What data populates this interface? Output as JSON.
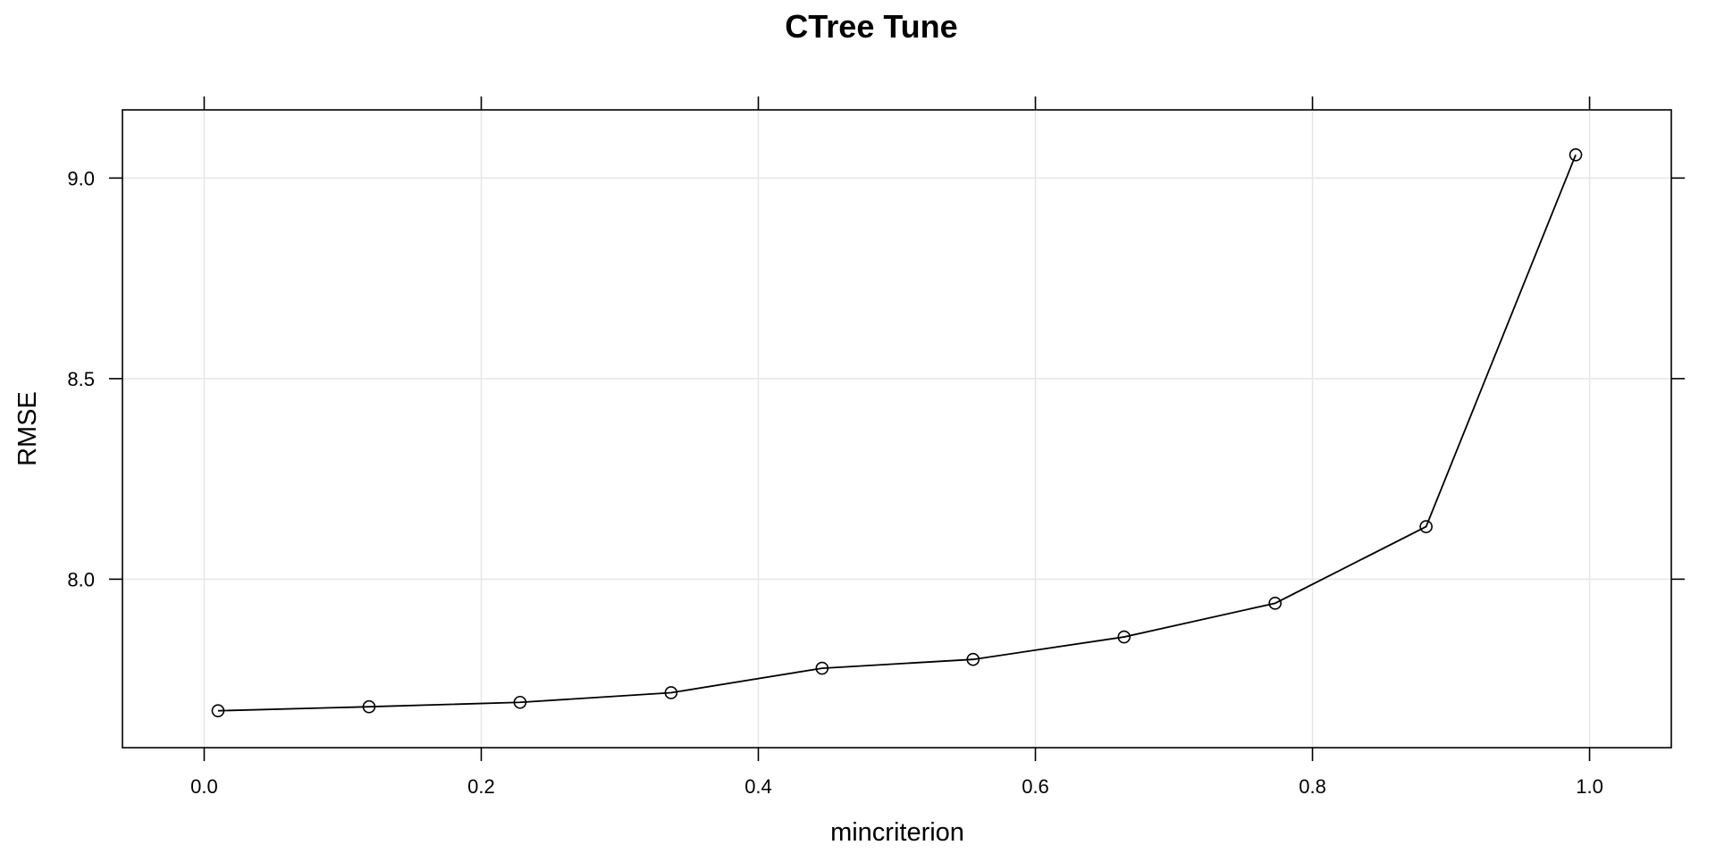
{
  "chart_data": {
    "type": "line",
    "title": "CTree Tune",
    "xlabel": "mincriterion",
    "ylabel": "RMSE",
    "xlim": [
      -0.059,
      1.059
    ],
    "ylim": [
      7.58,
      9.17
    ],
    "x_ticks": [
      0.0,
      0.2,
      0.4,
      0.6,
      0.8,
      1.0
    ],
    "x_tick_labels": [
      "0.0",
      "0.2",
      "0.4",
      "0.6",
      "0.8",
      "1.0"
    ],
    "y_ticks": [
      8.0,
      8.5,
      9.0
    ],
    "y_tick_labels": [
      "8.0",
      "8.5",
      "9.0"
    ],
    "grid": true,
    "marker": "open-circle",
    "series": [
      {
        "x": [
          0.01,
          0.119,
          0.228,
          0.337,
          0.446,
          0.555,
          0.664,
          0.773,
          0.882,
          0.99
        ],
        "y": [
          7.672,
          7.682,
          7.693,
          7.717,
          7.778,
          7.8,
          7.856,
          7.94,
          8.131,
          9.058
        ]
      }
    ],
    "colors": {
      "line": "#000000",
      "grid": "#e6e6e6",
      "frame": "#000000"
    }
  }
}
